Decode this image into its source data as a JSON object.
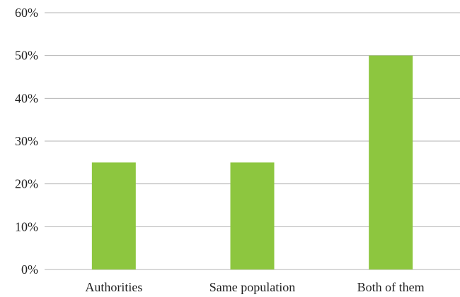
{
  "chart_data": {
    "type": "bar",
    "categories": [
      "Authorities",
      "Same population",
      "Both of them"
    ],
    "values": [
      25,
      25,
      50
    ],
    "title": "",
    "xlabel": "",
    "ylabel": "",
    "ylim": [
      0,
      60
    ],
    "yticks": [
      0,
      10,
      20,
      30,
      40,
      50,
      60
    ],
    "ytick_labels": [
      "0%",
      "10%",
      "20%",
      "30%",
      "40%",
      "50%",
      "60%"
    ],
    "grid": true,
    "legend": "none",
    "bar_color": "#8dc63f"
  }
}
